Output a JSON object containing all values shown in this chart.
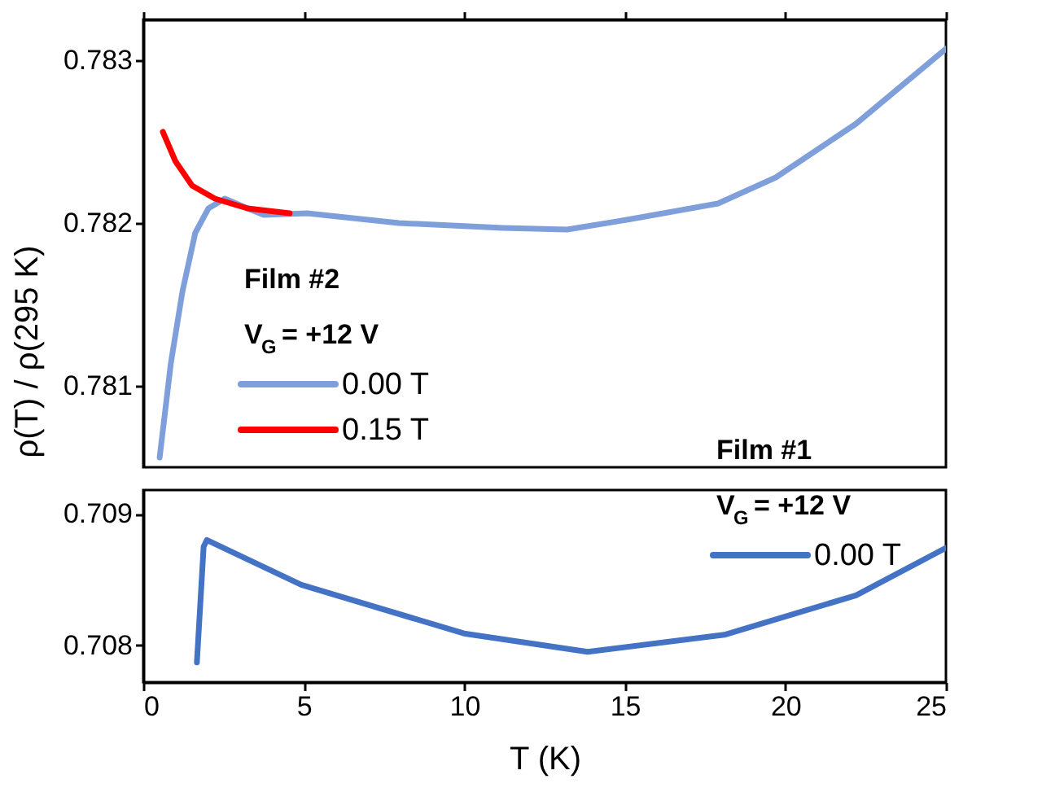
{
  "chart_data": [
    {
      "type": "line",
      "ylabel": "ρ(T) / ρ(295 K)",
      "legend_title": "Film #2\nV$_{G}$ = +12 V",
      "legend": "bottom left",
      "tick_labels": "y",
      "line_style": "solid",
      "xlim": [
        0,
        25
      ],
      "xticks": [
        0,
        5,
        10,
        15,
        20,
        25
      ],
      "ylim": [
        0.7805,
        0.78325
      ],
      "yticks": [
        0.781,
        0.782,
        0.783
      ],
      "series": [
        {
          "name": "0.00 T",
          "color": "#7f9fdb",
          "x": [
            0.51,
            0.86,
            1.22,
            1.62,
            2.03,
            2.54,
            3.25,
            3.75,
            5.1,
            7.96,
            11.2,
            13.2,
            15.06,
            17.9,
            19.7,
            22.2,
            25
          ],
          "values": [
            0.78056,
            0.78114,
            0.78158,
            0.78194,
            0.78209,
            0.78215,
            0.78209,
            0.78205,
            0.78206,
            0.782,
            0.78197,
            0.78196,
            0.78202,
            0.78212,
            0.78228,
            0.78261,
            0.78307
          ]
        },
        {
          "name": "0.15 T",
          "color": "#ff0000",
          "x": [
            0.61,
            1.0,
            1.52,
            2.23,
            3.25,
            4.56
          ],
          "values": [
            0.78256,
            0.78238,
            0.78223,
            0.78215,
            0.78209,
            0.78206
          ]
        }
      ]
    },
    {
      "type": "line",
      "xlabel": "T (K)",
      "legend_title": "Film #1\nV$_{G}$ = +12 V",
      "legend": "top right",
      "line_style": "solid",
      "xlim": [
        0,
        25
      ],
      "xticks": [
        0,
        5,
        10,
        15,
        20,
        25
      ],
      "ylim": [
        0.70772,
        0.70918
      ],
      "yticks": [
        0.708,
        0.709
      ],
      "series": [
        {
          "name": "0.00 T",
          "color": "#4472c4",
          "x": [
            1.67,
            1.88,
            1.98,
            4.92,
            9.99,
            13.84,
            18.1,
            22.2,
            25
          ],
          "values": [
            0.70787,
            0.70875,
            0.7088,
            0.70846,
            0.70809,
            0.70795,
            0.70808,
            0.70838,
            0.70874
          ]
        }
      ]
    }
  ]
}
